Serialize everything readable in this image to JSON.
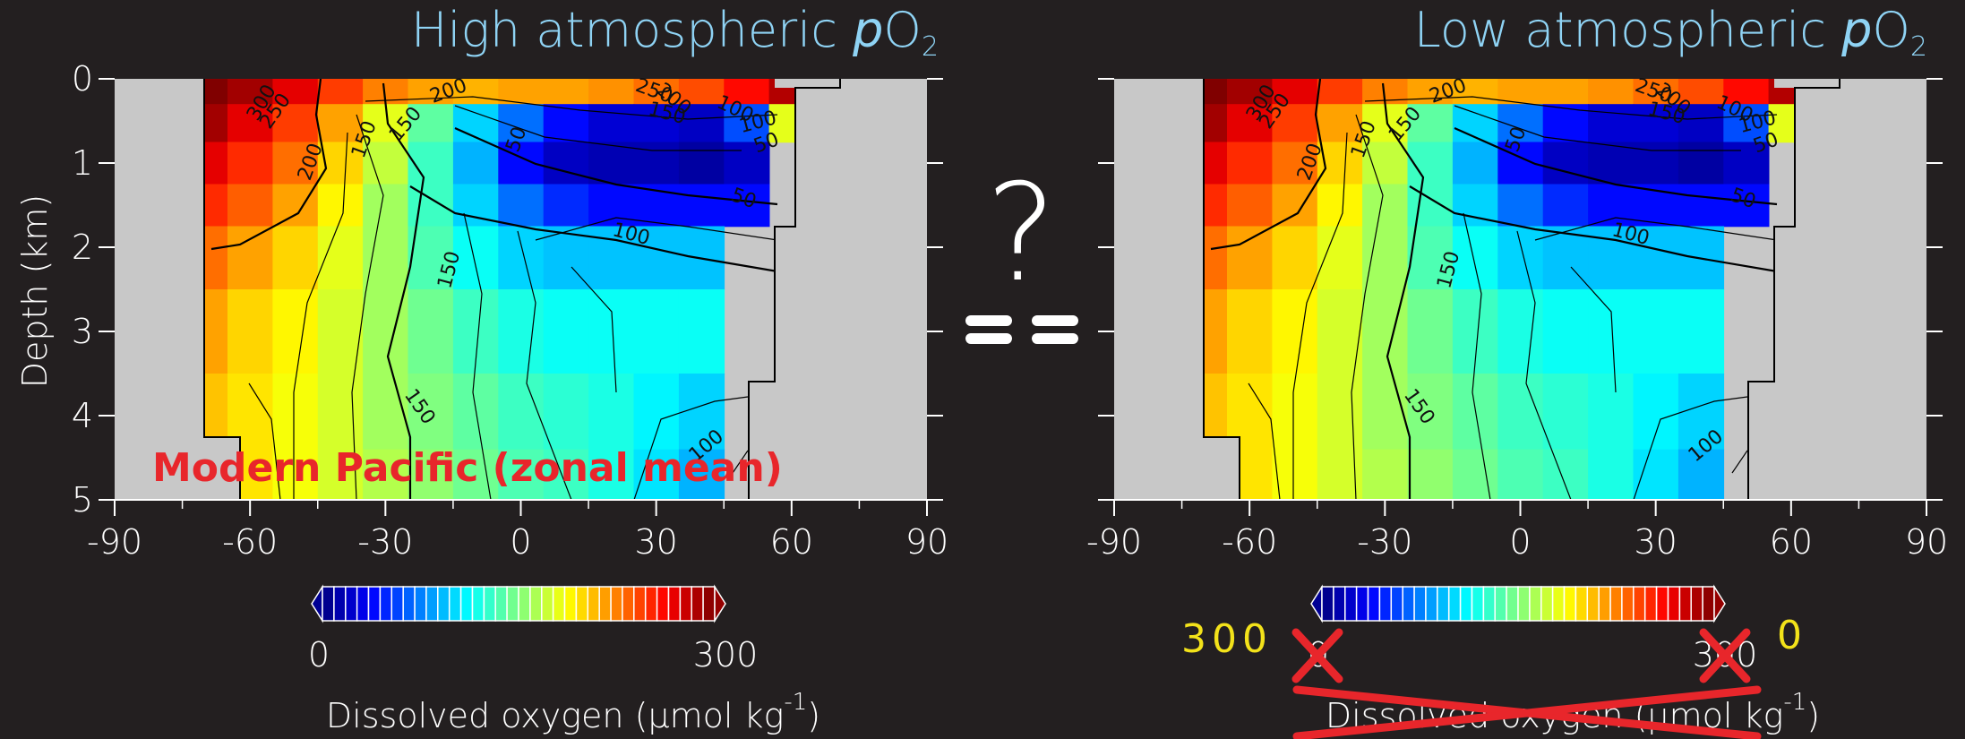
{
  "colors": {
    "background": "#231f20",
    "title": "#8fd3f4",
    "land": "#c8c8c8",
    "annotation_red": "#e8262b",
    "relabel_yellow": "#f3e21a"
  },
  "middle_symbol": {
    "question": "?",
    "equals": "=="
  },
  "chart_data": [
    {
      "type": "heatmap",
      "title": "High atmospheric pO₂",
      "title_parts": {
        "prefix": "High atmospheric ",
        "italic": "p",
        "species": "O",
        "subscript": "2"
      },
      "ylabel": "Depth (km)",
      "xlabel": "",
      "x_ticks": [
        "-90",
        "-60",
        "-30",
        "0",
        "30",
        "60",
        "90"
      ],
      "y_ticks": [
        "0",
        "1",
        "2",
        "3",
        "4",
        "5"
      ],
      "xlim": [
        -90,
        90
      ],
      "ylim": [
        0,
        5
      ],
      "annotation": "Modern Pacific (zonal mean)",
      "contour_labels": [
        "300",
        "250",
        "200",
        "200",
        "150",
        "150",
        "150",
        "150",
        "100",
        "100",
        "50",
        "50",
        "250",
        "200",
        "100",
        "100",
        "150",
        "50"
      ],
      "colorbar": {
        "min_label": "0",
        "max_label": "300",
        "range": [
          0,
          300
        ],
        "label": "Dissolved oxygen (μmol kg⁻¹)",
        "label_parts": {
          "text": "Dissolved oxygen (μmol kg",
          "sup": "-1",
          "close": ")"
        },
        "colormap": "jet"
      },
      "oxygen_field": {
        "latitudes": [
          -70,
          -60,
          -50,
          -40,
          -30,
          -20,
          -10,
          0,
          10,
          20,
          30,
          40,
          50,
          60
        ],
        "depths_km": [
          0.1,
          0.5,
          1.0,
          1.5,
          2.0,
          3.0,
          4.0,
          4.8
        ],
        "values": [
          [
            300,
            290,
            270,
            245,
            225,
            215,
            210,
            215,
            215,
            220,
            230,
            240,
            260,
            285
          ],
          [
            290,
            270,
            245,
            215,
            180,
            140,
            100,
            70,
            40,
            25,
            25,
            20,
            60,
            180
          ],
          [
            270,
            250,
            230,
            200,
            170,
            130,
            90,
            40,
            20,
            15,
            15,
            10,
            20,
            null
          ],
          [
            250,
            235,
            215,
            190,
            160,
            130,
            100,
            70,
            50,
            40,
            40,
            40,
            40,
            null
          ],
          [
            230,
            215,
            200,
            180,
            160,
            135,
            115,
            100,
            95,
            95,
            95,
            95,
            null,
            null
          ],
          [
            215,
            200,
            190,
            175,
            160,
            145,
            130,
            120,
            115,
            115,
            115,
            115,
            null,
            null
          ],
          [
            205,
            195,
            185,
            175,
            160,
            150,
            140,
            130,
            125,
            120,
            110,
            100,
            null,
            null
          ],
          [
            200,
            195,
            185,
            175,
            165,
            155,
            145,
            135,
            130,
            120,
            105,
            90,
            null,
            null
          ]
        ]
      }
    },
    {
      "type": "heatmap",
      "title": "Low atmospheric pO₂",
      "title_parts": {
        "prefix": "Low atmospheric ",
        "italic": "p",
        "species": "O",
        "subscript": "2"
      },
      "ylabel": "",
      "xlabel": "",
      "x_ticks": [
        "-90",
        "-60",
        "-30",
        "0",
        "30",
        "60",
        "90"
      ],
      "y_ticks": [],
      "xlim": [
        -90,
        90
      ],
      "ylim": [
        0,
        5
      ],
      "same_field_as_left": true,
      "contour_labels": [
        "300",
        "250",
        "200",
        "200",
        "150",
        "150",
        "150",
        "150",
        "100",
        "100",
        "50",
        "50",
        "250",
        "200",
        "100",
        "100",
        "150",
        "50"
      ],
      "colorbar": {
        "min_label": "0",
        "max_label": "300",
        "crossed_out": true,
        "replacement_min_label": "300",
        "replacement_max_label": "0",
        "label": "Dissolved oxygen (μmol kg⁻¹)",
        "label_parts": {
          "text": "Dissolved oxygen (μmol kg",
          "sup": "-1",
          "close": ")"
        },
        "label_crossed_out": true,
        "colormap": "jet"
      }
    }
  ]
}
